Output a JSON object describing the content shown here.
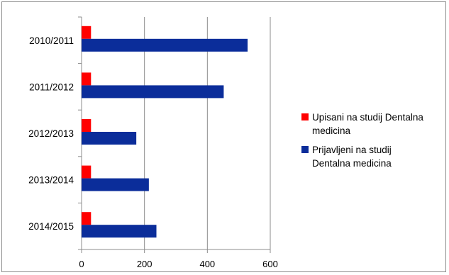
{
  "chart_data": {
    "type": "bar",
    "orientation": "horizontal",
    "categories": [
      "2010/2011",
      "2011/2012",
      "2012/2013",
      "2013/2014",
      "2014/2015"
    ],
    "series": [
      {
        "name": "Upisani na studij Dentalna medicina",
        "name_lines": [
          "Upisani na studij Dentalna",
          "medicina"
        ],
        "color": "#ff0000",
        "values": [
          30,
          30,
          30,
          30,
          30
        ]
      },
      {
        "name": "Prijavljeni na studij Dentalna medicina",
        "name_lines": [
          "Prijavljeni na studij",
          "Dentalna medicina"
        ],
        "color": "#0b2d9a",
        "values": [
          528,
          452,
          174,
          214,
          238
        ]
      }
    ],
    "xlim": [
      0,
      600
    ],
    "xticks": [
      0,
      200,
      400,
      600
    ],
    "grid": true,
    "legend_position": "right",
    "title": "",
    "xlabel": "",
    "ylabel": ""
  }
}
